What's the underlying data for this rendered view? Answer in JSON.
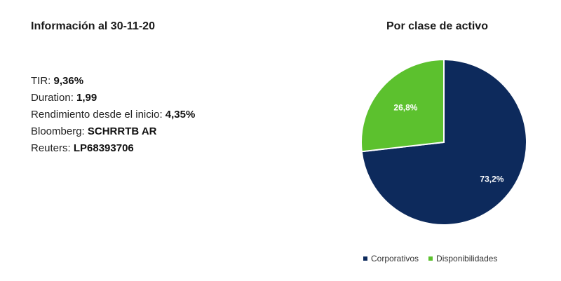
{
  "info": {
    "title": "Información al 30-11-20",
    "rows": [
      {
        "label": "TIR: ",
        "value": "9,36%"
      },
      {
        "label": "Duration: ",
        "value": "1,99"
      },
      {
        "label": "Rendimiento desde el inicio: ",
        "value": "4,35%"
      },
      {
        "label": "Bloomberg: ",
        "value": "SCHRRTB AR"
      },
      {
        "label": "Reuters: ",
        "value": "LP68393706"
      }
    ]
  },
  "chart_data": {
    "type": "pie",
    "title": "Por clase de activo",
    "slices": [
      {
        "name": "Corporativos",
        "value": 73.2,
        "label": "73,2%",
        "color": "#0d2a5c"
      },
      {
        "name": "Disponibilidades",
        "value": 26.8,
        "label": "26,8%",
        "color": "#5cc12e"
      }
    ],
    "legend_position": "bottom"
  },
  "colors": {
    "corporativos": "#0d2a5c",
    "disponibilidades": "#5cc12e"
  }
}
